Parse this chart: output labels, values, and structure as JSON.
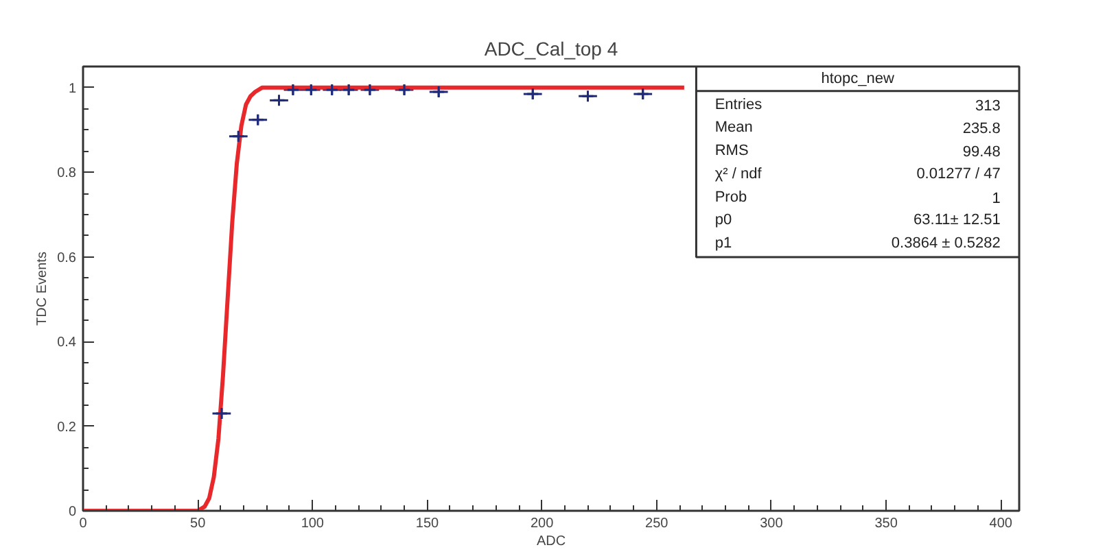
{
  "chart_data": {
    "type": "scatter",
    "title": "ADC_Cal_top 4",
    "xlabel": "ADC",
    "ylabel": "TDC Events",
    "xlim": [
      0,
      408
    ],
    "ylim": [
      0,
      1.05
    ],
    "xticks": [
      0,
      50,
      100,
      150,
      200,
      250,
      300,
      350,
      400
    ],
    "yticks": [
      0,
      0.2,
      0.4,
      0.6,
      0.8,
      1
    ],
    "grid": false,
    "annotations": [
      "htopc_new",
      "Entries",
      "313",
      "Mean",
      "235.8",
      "RMS",
      "99.48",
      "χ² / ndf",
      "0.01277 / 47",
      "Prob",
      "1",
      "p0",
      "63.11± 12.51",
      "p1",
      "0.3864 ± 0.5282"
    ],
    "series": [
      {
        "color": "#1f2a7a",
        "marker": "cross",
        "x": [
          60.4,
          67.7,
          76.2,
          85.4,
          91.5,
          99.4,
          108.5,
          115.8,
          125,
          140,
          155,
          196,
          220,
          244
        ],
        "values": [
          0.23,
          0.885,
          0.924,
          0.97,
          0.995,
          0.995,
          0.995,
          0.995,
          0.995,
          0.995,
          0.99,
          0.985,
          0.98,
          0.985
        ],
        "errors": [
          0.012,
          0.012,
          0.012,
          0.012,
          0.012,
          0.012,
          0.012,
          0.012,
          0.012,
          0.012,
          0.012,
          0.012,
          0.012,
          0.012
        ],
        "xerrors": [
          4,
          4,
          4,
          4,
          4,
          4,
          4,
          4,
          4,
          4,
          4,
          4,
          4,
          4
        ]
      },
      {
        "type": "line",
        "color": "#e8282b",
        "line_style": "solid",
        "marker": "none",
        "x": [
          0,
          50,
          53,
          55,
          57,
          59,
          61,
          63,
          65,
          67,
          69,
          71,
          73,
          75,
          78,
          82,
          90,
          262
        ],
        "values": [
          0,
          0,
          0.01,
          0.03,
          0.08,
          0.17,
          0.32,
          0.5,
          0.68,
          0.82,
          0.91,
          0.96,
          0.98,
          0.99,
          1.0,
          1.0,
          1.0,
          1.0
        ]
      }
    ]
  }
}
